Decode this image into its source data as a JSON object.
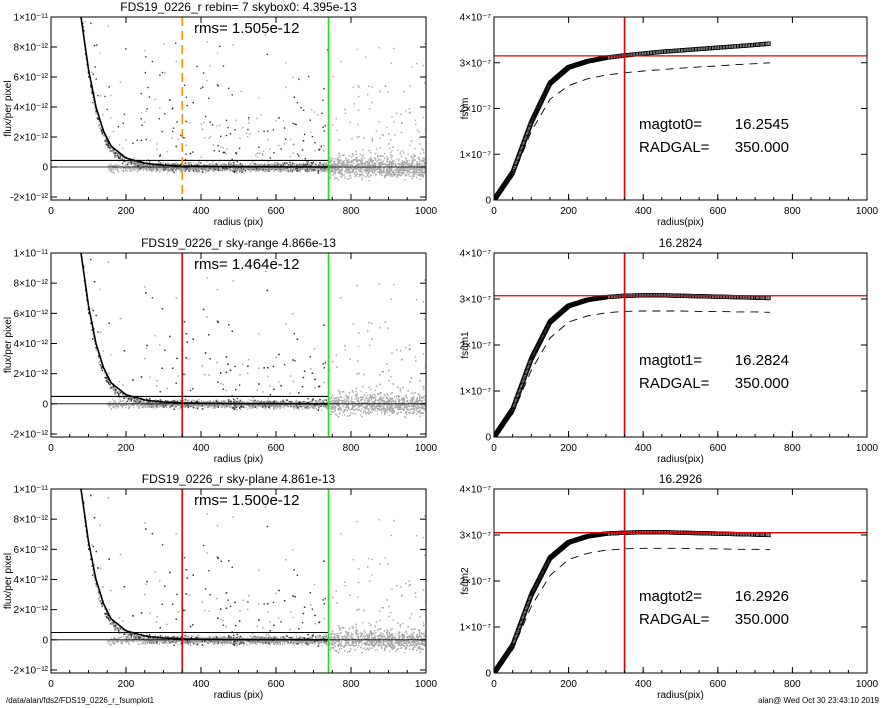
{
  "footer": {
    "path": "/data/alan/fds2/FDS19_0226_r_fsumplot1",
    "stamp": "alan@  Wed Oct 30 23:43:10 2019"
  },
  "colors": {
    "red_line": "#e00000",
    "green_line": "#22dd22",
    "orange_line": "#ff8c00",
    "scatter": "#a8a8a8",
    "scatter_dark": "#333333",
    "curve": "#000000"
  },
  "chart_data": [
    {
      "id": "profile-rebin",
      "type": "scatter",
      "title": "FDS19_0226_r rebin= 7    skybox0:  4.395e-13",
      "annotation": "rms= 1.505e-12",
      "xlabel": "radius (pix)",
      "ylabel": "flux/per pixel",
      "xlim": [
        0,
        1000
      ],
      "ylim": [
        -2.2e-12,
        1e-11
      ],
      "xticks": [
        0,
        200,
        400,
        600,
        800,
        1000
      ],
      "yticks": [
        {
          "value": -2e-12,
          "label": "-2×10⁻¹²"
        },
        {
          "value": 0,
          "label": "0"
        },
        {
          "value": 2e-12,
          "label": "2×10⁻¹²"
        },
        {
          "value": 4e-12,
          "label": "4×10⁻¹²"
        },
        {
          "value": 6e-12,
          "label": "6×10⁻¹²"
        },
        {
          "value": 8e-12,
          "label": "8×10⁻¹²"
        },
        {
          "value": 1e-11,
          "label": "1×10⁻¹¹"
        }
      ],
      "sky_level": 4.395e-13,
      "vlines": [
        {
          "x": 350,
          "color": "orange",
          "dashed": true
        },
        {
          "x": 740,
          "color": "green",
          "dashed": false
        }
      ],
      "profile_points": [
        [
          80,
          1e-11
        ],
        [
          100,
          6.5e-12
        ],
        [
          120,
          4e-12
        ],
        [
          140,
          2.4e-12
        ],
        [
          160,
          1.4e-12
        ],
        [
          200,
          6e-13
        ],
        [
          250,
          2.5e-13
        ],
        [
          300,
          1.2e-13
        ],
        [
          350,
          6e-14
        ],
        [
          450,
          2e-14
        ],
        [
          550,
          1e-14
        ],
        [
          740,
          0
        ]
      ]
    },
    {
      "id": "growth-fsum",
      "type": "line",
      "title": "",
      "xlabel": "radius(pix)",
      "ylabel": "fsum",
      "xlim": [
        0,
        1000
      ],
      "ylim": [
        0,
        4e-07
      ],
      "xticks": [
        0,
        200,
        400,
        600,
        800,
        1000
      ],
      "yticks": [
        {
          "value": 0,
          "label": "0"
        },
        {
          "value": 1e-07,
          "label": "1×10⁻⁷"
        },
        {
          "value": 2e-07,
          "label": "2×10⁻⁷"
        },
        {
          "value": 3e-07,
          "label": "3×10⁻⁷"
        },
        {
          "value": 4e-07,
          "label": "4×10⁻⁷"
        }
      ],
      "hline": 3.15e-07,
      "vline": 350,
      "annotations": [
        {
          "label": "magtot0=",
          "value": "16.2545"
        },
        {
          "label": "RADGAL=",
          "value": "350.000"
        }
      ],
      "series": [
        {
          "style": "squares",
          "x": [
            0,
            50,
            100,
            150,
            200,
            250,
            300,
            350,
            400,
            450,
            500,
            550,
            600,
            650,
            700,
            740
          ],
          "y": [
            0,
            6e-08,
            1.7e-07,
            2.55e-07,
            2.9e-07,
            3.03e-07,
            3.11e-07,
            3.16e-07,
            3.2e-07,
            3.24e-07,
            3.27e-07,
            3.3e-07,
            3.33e-07,
            3.36e-07,
            3.39e-07,
            3.42e-07
          ]
        },
        {
          "style": "dashed",
          "x": [
            0,
            50,
            100,
            150,
            200,
            250,
            300,
            350,
            400,
            450,
            500,
            550,
            600,
            650,
            700,
            740
          ],
          "y": [
            0,
            5e-08,
            1.5e-07,
            2.2e-07,
            2.5e-07,
            2.65e-07,
            2.73e-07,
            2.78e-07,
            2.82e-07,
            2.85e-07,
            2.88e-07,
            2.91e-07,
            2.93e-07,
            2.96e-07,
            2.98e-07,
            3e-07
          ]
        }
      ]
    },
    {
      "id": "profile-skyrange",
      "type": "scatter",
      "title": "FDS19_0226_r sky-range  4.866e-13",
      "annotation": "rms= 1.464e-12",
      "xlabel": "radius (pix)",
      "ylabel": "flux/per pixel",
      "xlim": [
        0,
        1000
      ],
      "ylim": [
        -2.2e-12,
        1e-11
      ],
      "xticks": [
        0,
        200,
        400,
        600,
        800,
        1000
      ],
      "yticks": [
        {
          "value": -2e-12,
          "label": "-2×10⁻¹²"
        },
        {
          "value": 0,
          "label": "0"
        },
        {
          "value": 2e-12,
          "label": "2×10⁻¹²"
        },
        {
          "value": 4e-12,
          "label": "4×10⁻¹²"
        },
        {
          "value": 6e-12,
          "label": "6×10⁻¹²"
        },
        {
          "value": 8e-12,
          "label": "8×10⁻¹²"
        },
        {
          "value": 1e-11,
          "label": "1×10⁻¹¹"
        }
      ],
      "sky_level": 4.866e-13,
      "vlines": [
        {
          "x": 350,
          "color": "red",
          "dashed": false
        },
        {
          "x": 740,
          "color": "green",
          "dashed": false
        }
      ],
      "profile_points": [
        [
          80,
          1e-11
        ],
        [
          100,
          6.5e-12
        ],
        [
          120,
          4e-12
        ],
        [
          140,
          2.4e-12
        ],
        [
          160,
          1.4e-12
        ],
        [
          200,
          6e-13
        ],
        [
          250,
          2.5e-13
        ],
        [
          300,
          1.2e-13
        ],
        [
          350,
          6e-14
        ],
        [
          450,
          2e-14
        ],
        [
          550,
          1e-14
        ],
        [
          740,
          0
        ]
      ]
    },
    {
      "id": "growth-fsum1",
      "type": "line",
      "title": "16.2824",
      "xlabel": "radius(pix)",
      "ylabel": "fsum1",
      "xlim": [
        0,
        1000
      ],
      "ylim": [
        0,
        4e-07
      ],
      "xticks": [
        0,
        200,
        400,
        600,
        800,
        1000
      ],
      "yticks": [
        {
          "value": 0,
          "label": "0"
        },
        {
          "value": 1e-07,
          "label": "1×10⁻⁷"
        },
        {
          "value": 2e-07,
          "label": "2×10⁻⁷"
        },
        {
          "value": 3e-07,
          "label": "3×10⁻⁷"
        },
        {
          "value": 4e-07,
          "label": "4×10⁻⁷"
        }
      ],
      "hline": 3.07e-07,
      "vline": 350,
      "annotations": [
        {
          "label": "magtot1=",
          "value": "16.2824"
        },
        {
          "label": "RADGAL=",
          "value": "350.000"
        }
      ],
      "series": [
        {
          "style": "squares",
          "x": [
            0,
            50,
            100,
            150,
            200,
            250,
            300,
            350,
            400,
            450,
            500,
            550,
            600,
            650,
            700,
            740
          ],
          "y": [
            0,
            6e-08,
            1.7e-07,
            2.5e-07,
            2.85e-07,
            2.98e-07,
            3.04e-07,
            3.07e-07,
            3.08e-07,
            3.08e-07,
            3.07e-07,
            3.06e-07,
            3.05e-07,
            3.04e-07,
            3.03e-07,
            3.02e-07
          ]
        },
        {
          "style": "dashed",
          "x": [
            0,
            50,
            100,
            150,
            200,
            250,
            300,
            350,
            400,
            450,
            500,
            550,
            600,
            650,
            700,
            740
          ],
          "y": [
            0,
            5e-08,
            1.45e-07,
            2.15e-07,
            2.5e-07,
            2.63e-07,
            2.7e-07,
            2.73e-07,
            2.74e-07,
            2.74e-07,
            2.74e-07,
            2.73e-07,
            2.73e-07,
            2.72e-07,
            2.72e-07,
            2.71e-07
          ]
        }
      ]
    },
    {
      "id": "profile-skyplane",
      "type": "scatter",
      "title": "FDS19_0226_r sky-plane  4.861e-13",
      "annotation": "rms= 1.500e-12",
      "xlabel": "radius (pix)",
      "ylabel": "flux/per pixel",
      "xlim": [
        0,
        1000
      ],
      "ylim": [
        -2.2e-12,
        1e-11
      ],
      "xticks": [
        0,
        200,
        400,
        600,
        800,
        1000
      ],
      "yticks": [
        {
          "value": -2e-12,
          "label": "-2×10⁻¹²"
        },
        {
          "value": 0,
          "label": "0"
        },
        {
          "value": 2e-12,
          "label": "2×10⁻¹²"
        },
        {
          "value": 4e-12,
          "label": "4×10⁻¹²"
        },
        {
          "value": 6e-12,
          "label": "6×10⁻¹²"
        },
        {
          "value": 8e-12,
          "label": "8×10⁻¹²"
        },
        {
          "value": 1e-11,
          "label": "1×10⁻¹¹"
        }
      ],
      "sky_level": 4.861e-13,
      "vlines": [
        {
          "x": 350,
          "color": "red",
          "dashed": false
        },
        {
          "x": 740,
          "color": "green",
          "dashed": false
        }
      ],
      "profile_points": [
        [
          80,
          1e-11
        ],
        [
          100,
          6.5e-12
        ],
        [
          120,
          4e-12
        ],
        [
          140,
          2.4e-12
        ],
        [
          160,
          1.4e-12
        ],
        [
          200,
          6e-13
        ],
        [
          250,
          2.5e-13
        ],
        [
          300,
          1.2e-13
        ],
        [
          350,
          6e-14
        ],
        [
          450,
          2e-14
        ],
        [
          550,
          1e-14
        ],
        [
          740,
          0
        ]
      ]
    },
    {
      "id": "growth-fsum2",
      "type": "line",
      "title": "16.2926",
      "xlabel": "radius(pix)",
      "ylabel": "fsum2",
      "xlim": [
        0,
        1000
      ],
      "ylim": [
        0,
        4e-07
      ],
      "xticks": [
        0,
        200,
        400,
        600,
        800,
        1000
      ],
      "yticks": [
        {
          "value": 0,
          "label": "0"
        },
        {
          "value": 1e-07,
          "label": "1×10⁻⁷"
        },
        {
          "value": 2e-07,
          "label": "2×10⁻⁷"
        },
        {
          "value": 3e-07,
          "label": "3×10⁻⁷"
        },
        {
          "value": 4e-07,
          "label": "4×10⁻⁷"
        }
      ],
      "hline": 3.05e-07,
      "vline": 350,
      "annotations": [
        {
          "label": "magtot2=",
          "value": "16.2926"
        },
        {
          "label": "RADGAL=",
          "value": "350.000"
        }
      ],
      "series": [
        {
          "style": "squares",
          "x": [
            0,
            50,
            100,
            150,
            200,
            250,
            300,
            350,
            400,
            450,
            500,
            550,
            600,
            650,
            700,
            740
          ],
          "y": [
            0,
            6e-08,
            1.7e-07,
            2.5e-07,
            2.84e-07,
            2.97e-07,
            3.03e-07,
            3.05e-07,
            3.06e-07,
            3.06e-07,
            3.05e-07,
            3.04e-07,
            3.03e-07,
            3.02e-07,
            3.01e-07,
            3e-07
          ]
        },
        {
          "style": "dashed",
          "x": [
            0,
            50,
            100,
            150,
            200,
            250,
            300,
            350,
            400,
            450,
            500,
            550,
            600,
            650,
            700,
            740
          ],
          "y": [
            0,
            5e-08,
            1.45e-07,
            2.12e-07,
            2.47e-07,
            2.6e-07,
            2.67e-07,
            2.7e-07,
            2.71e-07,
            2.71e-07,
            2.71e-07,
            2.7e-07,
            2.7e-07,
            2.69e-07,
            2.69e-07,
            2.68e-07
          ]
        }
      ]
    }
  ]
}
